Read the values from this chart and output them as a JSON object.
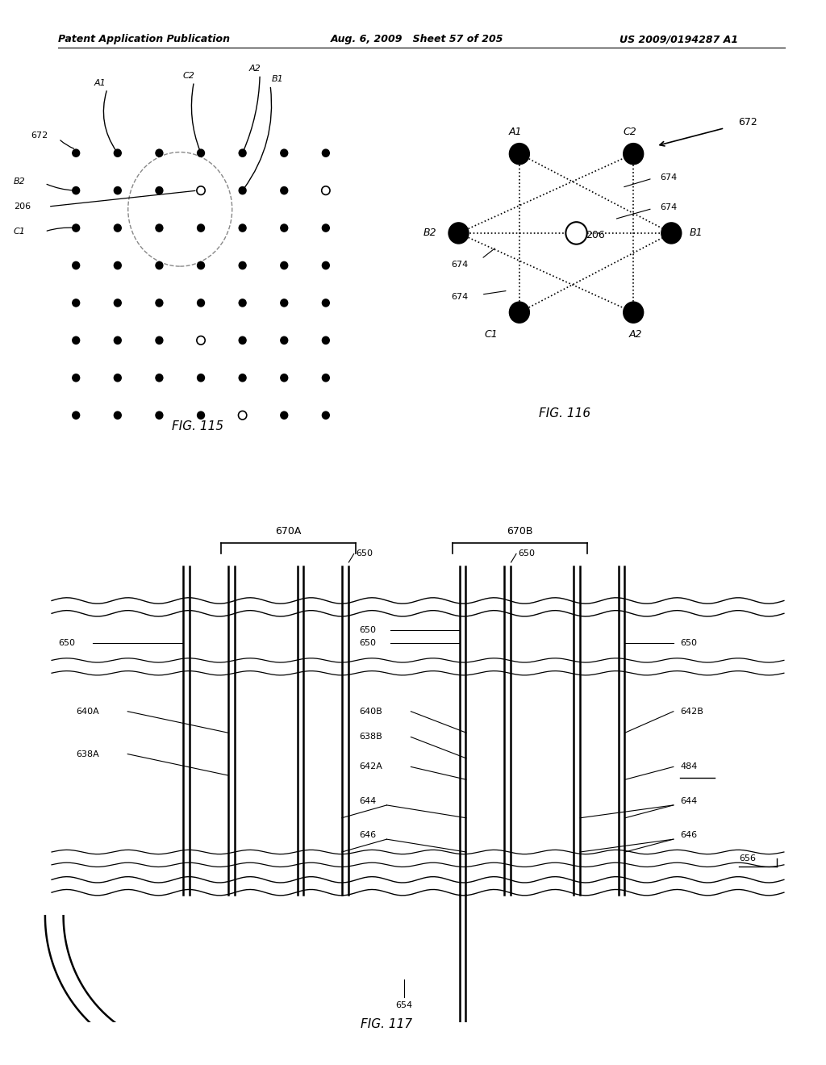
{
  "header_left": "Patent Application Publication",
  "header_mid": "Aug. 6, 2009   Sheet 57 of 205",
  "header_right": "US 2009/0194287 A1",
  "fig115_title": "FIG. 115",
  "fig116_title": "FIG. 116",
  "fig117_title": "FIG. 117",
  "bg_color": "#ffffff"
}
